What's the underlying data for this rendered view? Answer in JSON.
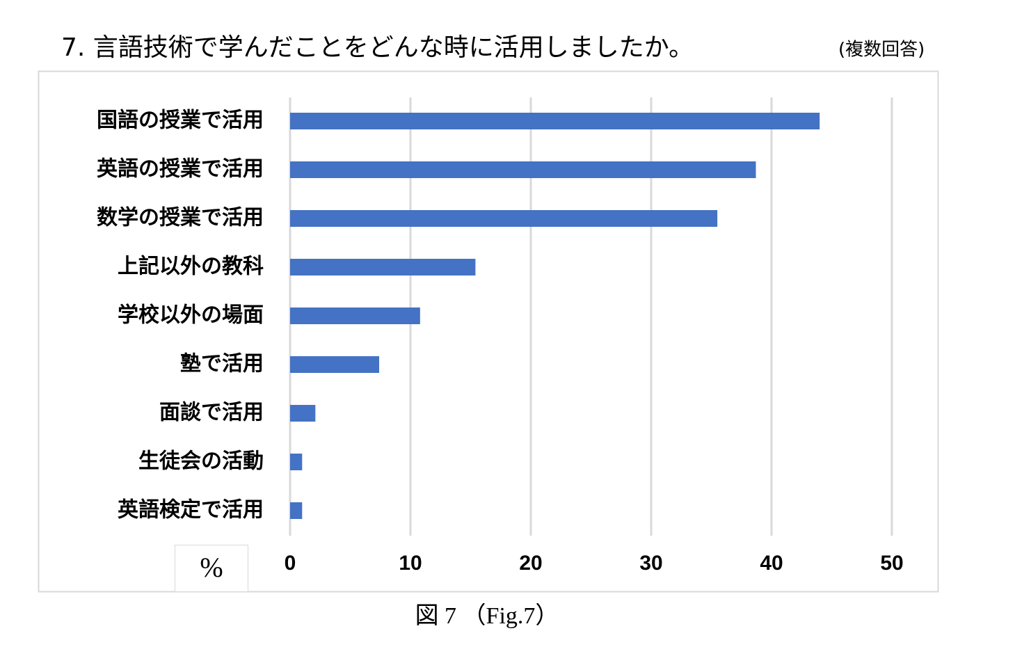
{
  "chart_data": {
    "type": "bar",
    "orientation": "horizontal",
    "title": "7. 言語技術で学んだことをどんな時に活用しましたか。",
    "subtitle": "(複数回答)",
    "x_label": "%",
    "caption": "図 7 （Fig.7）",
    "categories": [
      "国語の授業で活用",
      "英語の授業で活用",
      "数学の授業で活用",
      "上記以外の教科",
      "学校以外の場面",
      "塾で活用",
      "面談で活用",
      "生徒会の活動",
      "英語検定で活用"
    ],
    "values": [
      44.0,
      38.7,
      35.5,
      15.4,
      10.8,
      7.4,
      2.1,
      1.0,
      1.0
    ],
    "color": "#4472c4",
    "xlim": [
      0,
      50
    ],
    "xticks": [
      0,
      10,
      20,
      30,
      40,
      50
    ],
    "grid": true
  }
}
